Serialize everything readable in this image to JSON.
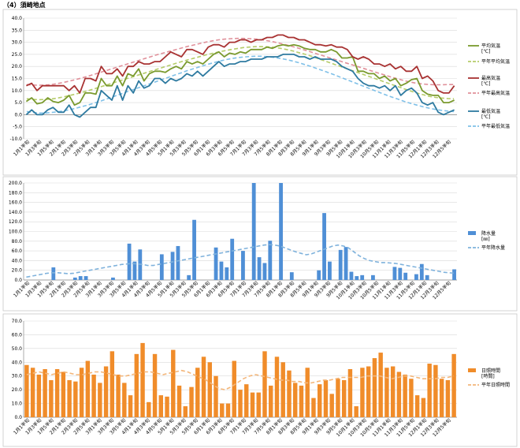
{
  "page_title": "（4）須崎地点",
  "x_labels": [
    "1月1半旬",
    "1月3半旬",
    "1月5半旬",
    "2月1半旬",
    "2月3半旬",
    "2月5半旬",
    "3月1半旬",
    "3月3半旬",
    "3月5半旬",
    "4月1半旬",
    "4月3半旬",
    "4月5半旬",
    "5月1半旬",
    "5月3半旬",
    "5月5半旬",
    "6月1半旬",
    "6月3半旬",
    "6月5半旬",
    "7月1半旬",
    "7月3半旬",
    "7月5半旬",
    "8月1半旬",
    "8月3半旬",
    "8月5半旬",
    "9月1半旬",
    "9月3半旬",
    "9月5半旬",
    "10月1半旬",
    "10月3半旬",
    "10月5半旬",
    "11月1半旬",
    "11月3半旬",
    "11月5半旬",
    "12月1半旬",
    "12月3半旬",
    "12月5半旬"
  ],
  "chart_data": [
    {
      "type": "line",
      "title": "",
      "ylim": [
        -10,
        40
      ],
      "yticks": [
        "-10.0",
        "-5.0",
        "0.0",
        "5.0",
        "10.0",
        "15.0",
        "20.0",
        "25.0",
        "30.0",
        "35.0",
        "40.0"
      ],
      "series": [
        {
          "name": "平均気温",
          "unit": "[℃]",
          "color": "#7a9a2e",
          "style": "solid",
          "values": [
            5.5,
            7,
            4.5,
            5,
            7,
            5.5,
            5,
            6,
            8,
            4,
            5,
            9,
            9,
            8.5,
            15,
            12,
            12,
            16,
            12,
            17,
            16,
            19,
            14,
            17,
            18,
            18,
            17.5,
            19,
            20,
            19,
            22,
            21,
            22,
            21,
            23,
            25,
            26,
            24,
            25.5,
            25,
            26,
            25.5,
            27,
            27,
            27,
            28,
            27.5,
            28.5,
            29,
            28.5,
            29,
            28.5,
            27.5,
            27,
            27,
            26,
            26,
            27,
            26,
            23.5,
            23.5,
            24,
            18,
            18,
            17,
            17,
            15,
            16,
            14,
            15,
            12,
            13,
            14.5,
            15,
            10,
            8.5,
            8,
            8,
            5,
            5,
            6
          ]
        },
        {
          "name": "平年平均気温",
          "unit": "",
          "color": "#b5cc6a",
          "style": "dash",
          "values": [
            6.6,
            6.3,
            6.2,
            6.3,
            6.5,
            6.9,
            7.4,
            8.0,
            8.6,
            9.3,
            10.0,
            10.8,
            11.6,
            12.4,
            13.2,
            14.0,
            14.8,
            15.6,
            16.4,
            17.2,
            18.0,
            18.8,
            19.6,
            20.4,
            21.2,
            22.0,
            22.7,
            23.4,
            24.1,
            24.8,
            25.4,
            26.0,
            26.5,
            27.0,
            27.4,
            27.8,
            28.0,
            28.2,
            28.2,
            28.1,
            27.9,
            27.5,
            27.0,
            26.4,
            25.7,
            25.0,
            24.2,
            23.3,
            22.4,
            21.5,
            20.6,
            19.7,
            18.8,
            17.9,
            17.0,
            16.1,
            15.2,
            14.3,
            13.4,
            12.5,
            11.6,
            10.7,
            9.8,
            9.0,
            8.3,
            7.6,
            7.2,
            6.9,
            6.7,
            6.6
          ]
        },
        {
          "name": "最高気温",
          "unit": "[℃]",
          "color": "#a83232",
          "style": "solid",
          "values": [
            12,
            13,
            10,
            12,
            12,
            12,
            12,
            12,
            10,
            12,
            9,
            15,
            15,
            14,
            20,
            17,
            17,
            19,
            16,
            20,
            20,
            22,
            21,
            21,
            22,
            22,
            24,
            26,
            25,
            24,
            27,
            27,
            26,
            25,
            28,
            29,
            29,
            28,
            30,
            30,
            31,
            31,
            30,
            31,
            31,
            32,
            32,
            33,
            33,
            32,
            32,
            31,
            31,
            30,
            29,
            29,
            28.5,
            29,
            28,
            28,
            27,
            24,
            23,
            24,
            23,
            21,
            21,
            20,
            21,
            19,
            20,
            18,
            18,
            20,
            15,
            16,
            14,
            10,
            9,
            9,
            12
          ]
        },
        {
          "name": "平年最高気温",
          "unit": "",
          "color": "#e0909a",
          "style": "dash",
          "values": [
            12.5,
            12.3,
            12.2,
            12.3,
            12.5,
            12.9,
            13.4,
            14.0,
            14.6,
            15.3,
            16.0,
            16.8,
            17.6,
            18.4,
            19.2,
            20.0,
            20.8,
            21.6,
            22.4,
            23.2,
            24.0,
            24.8,
            25.5,
            26.2,
            26.9,
            27.6,
            28.3,
            28.9,
            29.5,
            30.1,
            30.6,
            31.0,
            31.3,
            31.5,
            31.6,
            31.6,
            31.5,
            31.3,
            31.0,
            30.6,
            30.1,
            29.5,
            28.9,
            28.2,
            27.5,
            26.7,
            25.9,
            25.1,
            24.3,
            23.5,
            22.7,
            21.9,
            21.1,
            20.3,
            19.5,
            18.7,
            17.9,
            17.1,
            16.3,
            15.5,
            14.8,
            14.1,
            13.5,
            13.0,
            12.7,
            12.5,
            12.4,
            12.4,
            12.5,
            12.5
          ]
        },
        {
          "name": "最低気温",
          "unit": "[℃]",
          "color": "#2e7aa0",
          "style": "solid",
          "values": [
            0,
            2,
            0,
            0,
            2,
            3,
            1,
            1,
            4,
            0,
            -1,
            1,
            3,
            3,
            10,
            8,
            6,
            12,
            6,
            12,
            9,
            14,
            11,
            12,
            15,
            15,
            13,
            15,
            14,
            15,
            17,
            16,
            18,
            16,
            18,
            20,
            22,
            20,
            21,
            21,
            22,
            22,
            23,
            23,
            23,
            24,
            24,
            24,
            25,
            25,
            25,
            24,
            24,
            23,
            24,
            23,
            23,
            23,
            22,
            20,
            19,
            18,
            15,
            13,
            12,
            12,
            11,
            12,
            10,
            12,
            8,
            10,
            11,
            9,
            5,
            4,
            5,
            1,
            0,
            1,
            2
          ]
        },
        {
          "name": "平年最低気温",
          "unit": "",
          "color": "#7fc0e8",
          "style": "dash",
          "values": [
            1.3,
            0.9,
            0.7,
            0.7,
            0.9,
            1.2,
            1.6,
            2.1,
            2.7,
            3.4,
            4.1,
            4.9,
            5.7,
            6.6,
            7.5,
            8.4,
            9.3,
            10.2,
            11.1,
            12.0,
            12.9,
            13.8,
            14.7,
            15.6,
            16.5,
            17.4,
            18.3,
            19.1,
            19.9,
            20.7,
            21.4,
            22.1,
            22.7,
            23.2,
            23.6,
            23.9,
            24.1,
            24.2,
            24.2,
            24.0,
            23.7,
            23.3,
            22.8,
            22.2,
            21.5,
            20.7,
            19.9,
            19.0,
            18.1,
            17.2,
            16.2,
            15.2,
            14.2,
            13.2,
            12.2,
            11.2,
            10.2,
            9.2,
            8.2,
            7.3,
            6.4,
            5.5,
            4.7,
            4.0,
            3.3,
            2.7,
            2.2,
            1.8,
            1.5,
            1.3
          ]
        }
      ]
    },
    {
      "type": "bar",
      "title": "",
      "ylim": [
        0,
        200
      ],
      "yticks": [
        "0.0",
        "20.0",
        "40.0",
        "60.0",
        "80.0",
        "100.0",
        "120.0",
        "140.0",
        "160.0",
        "180.0",
        "200.0"
      ],
      "bar_series": {
        "name": "降水量",
        "unit": "[㎜]",
        "color": "#4f8fd6",
        "values": [
          0,
          0,
          0,
          0,
          0,
          26,
          0,
          0,
          0,
          5,
          8,
          8,
          0,
          0,
          0,
          0,
          5,
          0,
          0,
          75,
          38,
          63,
          0,
          0,
          0,
          53,
          0,
          58,
          70,
          0,
          10,
          124,
          0,
          0,
          0,
          67,
          38,
          26,
          85,
          0,
          60,
          0,
          200,
          47,
          35,
          81,
          0,
          200,
          0,
          16,
          0,
          0,
          0,
          0,
          20,
          138,
          38,
          0,
          62,
          68,
          17,
          8,
          10,
          0,
          10,
          0,
          0,
          0,
          27,
          25,
          15,
          0,
          12,
          33,
          10,
          0,
          0,
          0,
          0,
          22
        ]
      },
      "line_series": {
        "name": "平年降水量",
        "unit": "",
        "color": "#7fb2dc",
        "style": "dash",
        "values": [
          6,
          8,
          10,
          12,
          14,
          15,
          15,
          14,
          13,
          14,
          16,
          18,
          20,
          22,
          24,
          26,
          28,
          30,
          32,
          33,
          34,
          33,
          32,
          30,
          30,
          32,
          34,
          36,
          38,
          40,
          42,
          44,
          46,
          48,
          50,
          52,
          54,
          56,
          58,
          60,
          62,
          64,
          66,
          68,
          70,
          72,
          73,
          72,
          70,
          66,
          62,
          58,
          55,
          52,
          54,
          58,
          62,
          66,
          70,
          72,
          70,
          66,
          58,
          50,
          44,
          40,
          38,
          36,
          36,
          35,
          34,
          32,
          30,
          28,
          26,
          24,
          22,
          20,
          18,
          16,
          15,
          14
        ]
      }
    },
    {
      "type": "bar",
      "title": "",
      "ylim": [
        0,
        70
      ],
      "yticks": [
        "0.0",
        "10.0",
        "20.0",
        "30.0",
        "40.0",
        "50.0",
        "60.0",
        "70.0"
      ],
      "bar_series": {
        "name": "日照時間",
        "unit": "[時間]",
        "color": "#f08c2a",
        "values": [
          38,
          36,
          31,
          35,
          27,
          35,
          33,
          27,
          26,
          36,
          41,
          31,
          25,
          37,
          48,
          31,
          25,
          16,
          46,
          54,
          11,
          46,
          16,
          15,
          49,
          23,
          8,
          22,
          36,
          44,
          40,
          30,
          10,
          10,
          41,
          20,
          24,
          18,
          18,
          48,
          23,
          44,
          40,
          34,
          25,
          23,
          36,
          14,
          24,
          27,
          17,
          28,
          27,
          35,
          8,
          36,
          37,
          43,
          47,
          36,
          37,
          33,
          31,
          28,
          16,
          14,
          39,
          38,
          28,
          27,
          46
        ]
      },
      "line_series": {
        "name": "平年日照時間",
        "unit": "",
        "color": "#f3b67a",
        "style": "dash",
        "values": [
          31,
          32,
          33,
          32,
          31,
          32,
          33,
          32,
          31,
          31,
          32,
          33,
          33,
          32,
          31,
          30,
          30,
          31,
          32,
          33,
          33,
          32,
          31,
          32,
          33,
          34,
          33,
          31,
          29,
          27,
          24,
          21,
          20,
          22,
          25,
          28,
          30,
          31,
          30,
          29,
          28,
          27,
          27,
          26,
          26,
          25,
          25,
          26,
          27,
          27,
          28,
          29,
          29,
          29,
          29,
          30,
          30,
          30,
          29,
          28,
          29,
          30,
          30,
          29,
          28,
          28,
          28,
          29,
          29,
          30
        ]
      }
    }
  ]
}
